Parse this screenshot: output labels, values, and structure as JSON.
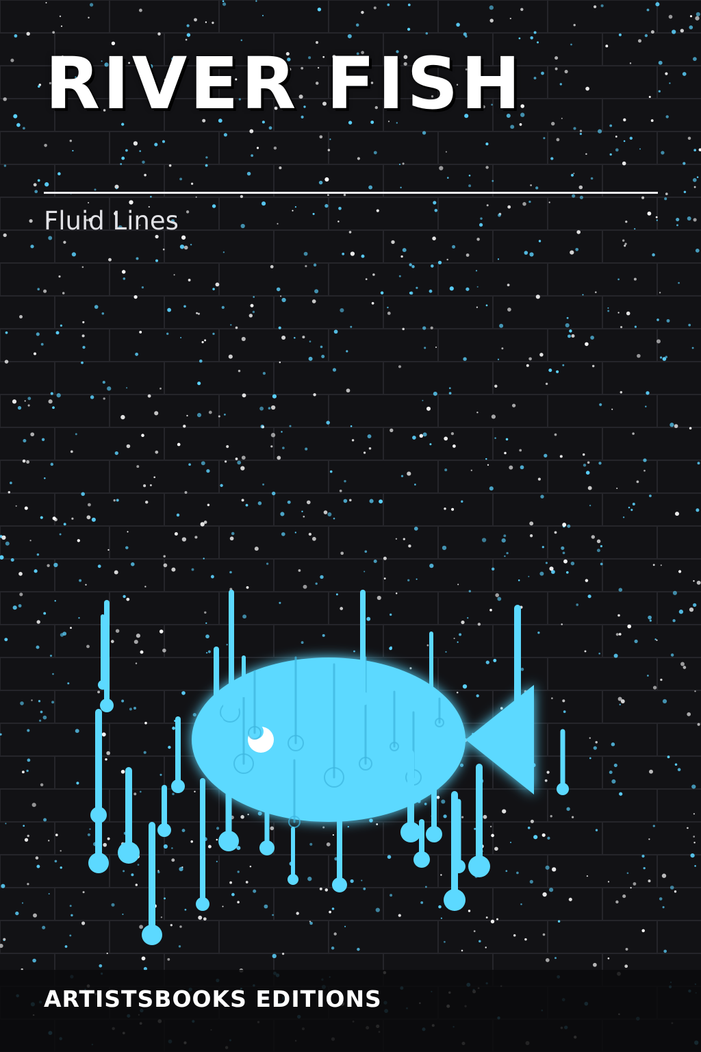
{
  "cover": {
    "title": "RIVER FISH",
    "subtitle": "Fluid Lines",
    "publisher": "ARTISTSBOOKS EDITIONS"
  },
  "colors": {
    "background": "#121215",
    "brick_line": "#25252a",
    "fish": "#5cd9ff",
    "star_blue": "#5cd3ff",
    "star_white": "#ffffff",
    "text": "#ffffff"
  }
}
